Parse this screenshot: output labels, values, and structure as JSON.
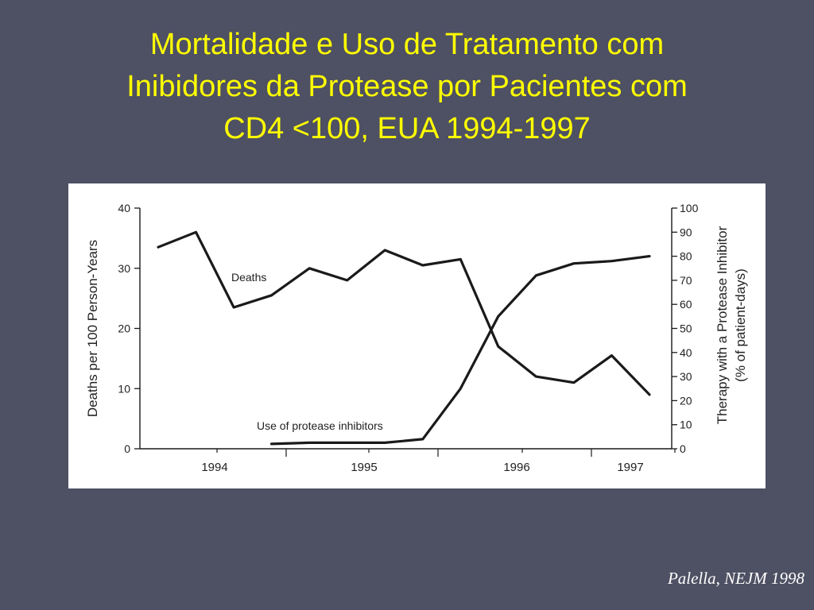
{
  "slide": {
    "title_lines": [
      "Mortalidade e Uso de Tratamento com",
      "Inibidores da Protease por Pacientes com",
      "CD4 <100, EUA 1994-1997"
    ],
    "citation": "Palella, NEJM 1998",
    "colors": {
      "background": "#4e5063",
      "title": "#ffff00",
      "panel": "#ffffff",
      "lines": "#1a1a1a"
    }
  },
  "chart_data": {
    "type": "line",
    "title": "",
    "x": [
      "1994 Q1",
      "1994 Q2",
      "1994 Q3",
      "1994 Q4",
      "1995 Q1",
      "1995 Q2",
      "1995 Q3",
      "1995 Q4",
      "1996 Q1",
      "1996 Q2",
      "1996 Q3",
      "1996 Q4",
      "1997 Q1",
      "1997 Q2"
    ],
    "xtick_labels": [
      "1994",
      "1995",
      "1996",
      "1997"
    ],
    "ylabel_left": "Deaths per 100 Person-Years",
    "ylabel_right_lines": [
      "Therapy with a Protease Inhibitor",
      "(% of patient-days)"
    ],
    "ylim_left": [
      0,
      40
    ],
    "yticks_left": [
      0,
      10,
      20,
      30,
      40
    ],
    "ylim_right": [
      0,
      100
    ],
    "yticks_right": [
      0,
      10,
      20,
      30,
      40,
      50,
      60,
      70,
      80,
      90,
      100
    ],
    "grid": false,
    "series": [
      {
        "name": "Deaths",
        "axis": "left",
        "values": [
          33.5,
          36.0,
          23.5,
          25.5,
          30.0,
          28.0,
          33.0,
          30.5,
          31.5,
          17.0,
          12.0,
          11.0,
          15.5,
          9.0
        ]
      },
      {
        "name": "Use of protease inhibitors",
        "axis": "right",
        "values": [
          null,
          null,
          null,
          2.0,
          2.5,
          2.5,
          2.5,
          4.0,
          25.0,
          55.0,
          72.0,
          77.0,
          78.0,
          80.0
        ]
      }
    ]
  }
}
